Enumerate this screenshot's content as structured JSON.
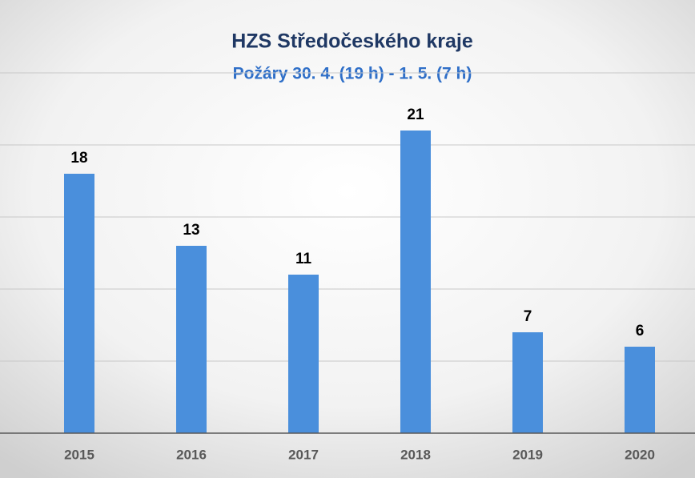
{
  "chart_data": {
    "type": "bar",
    "title": "HZS Středočeského kraje",
    "subtitle": "Požáry 30. 4. (19 h) - 1. 5. (7 h)",
    "categories": [
      "2015",
      "2016",
      "2017",
      "2018",
      "2019",
      "2020"
    ],
    "values": [
      18,
      13,
      11,
      21,
      7,
      6
    ],
    "color": "#4a8fdc",
    "ylim": [
      0,
      25
    ],
    "yticks": [
      0,
      5,
      10,
      15,
      20,
      25
    ],
    "grid": true
  }
}
